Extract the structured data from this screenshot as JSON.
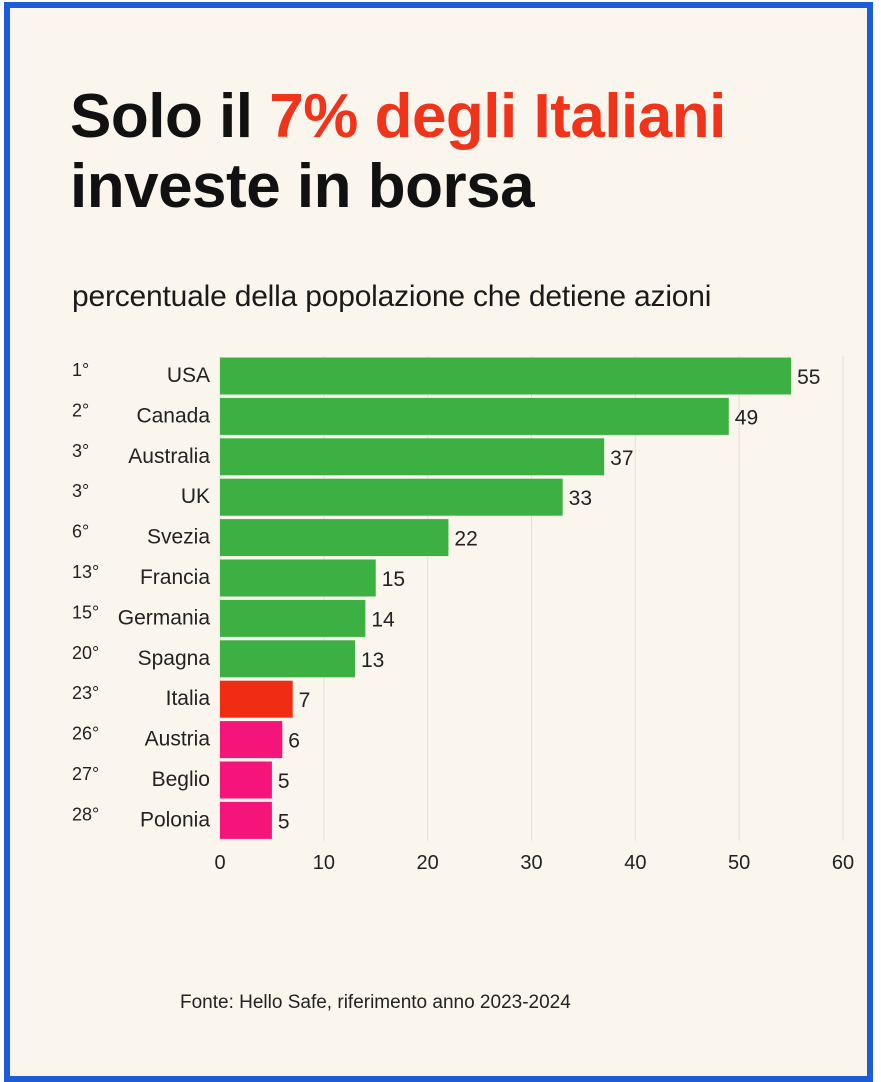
{
  "title": {
    "part1": "Solo il ",
    "highlight": "7% degli Italiani",
    "line2": "investe in borsa"
  },
  "subtitle": "percentuale della popolazione che detiene azioni",
  "source": "Fonte: Hello Safe, riferimento anno 2023-2024",
  "colors": {
    "accent": "#f0341c",
    "frame": "#1c5cd6",
    "green": "#3cb043",
    "red": "#f02d14",
    "pink": "#f5157a"
  },
  "chart_data": {
    "type": "bar",
    "orientation": "horizontal",
    "categories": [
      "USA",
      "Canada",
      "Australia",
      "UK",
      "Svezia",
      "Francia",
      "Germania",
      "Spagna",
      "Italia",
      "Austria",
      "Beglio",
      "Polonia"
    ],
    "ranks": [
      "1°",
      "2°",
      "3°",
      "3°",
      "6°",
      "13°",
      "15°",
      "20°",
      "23°",
      "26°",
      "27°",
      "28°"
    ],
    "values": [
      55,
      49,
      37,
      33,
      22,
      15,
      14,
      13,
      7,
      6,
      5,
      5
    ],
    "bar_colors": [
      "#3cb043",
      "#3cb043",
      "#3cb043",
      "#3cb043",
      "#3cb043",
      "#3cb043",
      "#3cb043",
      "#3cb043",
      "#f02d14",
      "#f5157a",
      "#f5157a",
      "#f5157a"
    ],
    "xlim": [
      0,
      60
    ],
    "xticks": [
      0,
      10,
      20,
      30,
      40,
      50,
      60
    ],
    "grid": "vertical",
    "data_labels": true,
    "title": "Solo il 7% degli Italiani investe in borsa",
    "xlabel": "",
    "ylabel": ""
  }
}
